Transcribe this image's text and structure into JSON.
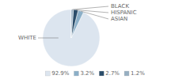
{
  "chart_data": {
    "type": "pie",
    "categories": [
      "WHITE",
      "ASIAN",
      "HISPANIC",
      "BLACK"
    ],
    "values": [
      92.9,
      3.2,
      2.7,
      1.2
    ],
    "value_labels": [
      "92.9%",
      "3.2%",
      "2.7%",
      "1.2%"
    ],
    "colors": [
      "#dce5ef",
      "#8bafc8",
      "#2b4d6a",
      "#97afc2"
    ],
    "legend": "bottom"
  }
}
